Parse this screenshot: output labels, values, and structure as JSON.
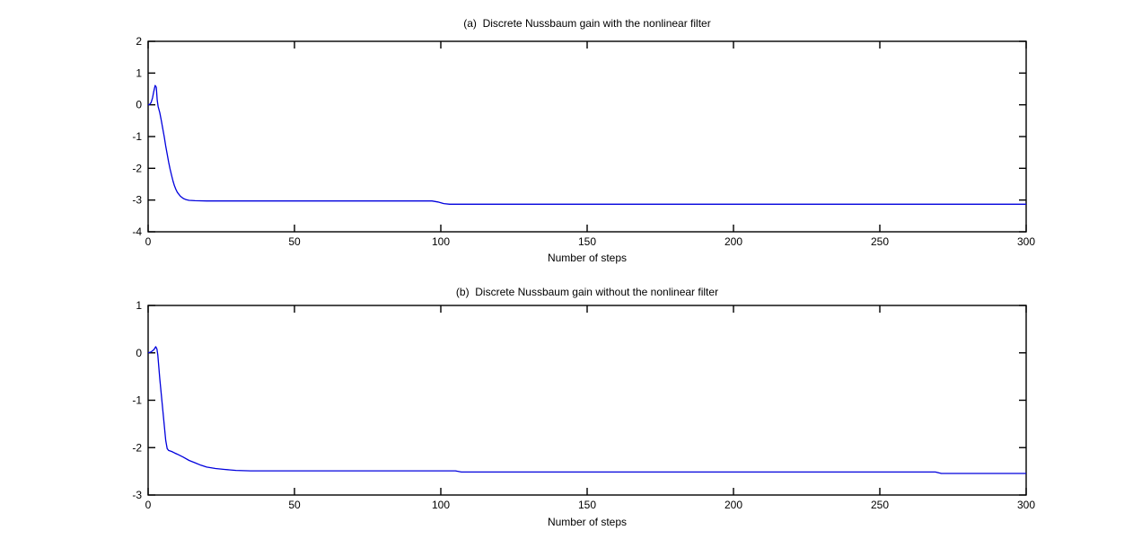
{
  "figure": {
    "background_color": "#ffffff",
    "axis_color": "#000000",
    "line_color": "#0000dd"
  },
  "chart_data": [
    {
      "type": "line",
      "title": "(a)  Discrete Nussbaum gain with the nonlinear filter",
      "xlabel": "Number of steps",
      "ylabel": "",
      "xlim": [
        0,
        300
      ],
      "ylim": [
        -4,
        2
      ],
      "xticks": [
        0,
        50,
        100,
        150,
        200,
        250,
        300
      ],
      "yticks": [
        2,
        1,
        0,
        -1,
        -2,
        -3,
        -4
      ],
      "grid": false,
      "legend": null,
      "description": "Gain starts at 0, spikes to about 0.6 near step 2-3, drops steeply to about -3.03 by step 14, stays flat, steps down slightly to about -3.13 near step 100, then remains constant to step 300",
      "series": [
        {
          "color": "#0000dd",
          "x": [
            0,
            0.5,
            1,
            1.5,
            2,
            2.4,
            2.8,
            3.1,
            3.4,
            4,
            4.5,
            5,
            5.5,
            6,
            6.5,
            7,
            7.5,
            8,
            8.5,
            9,
            9.5,
            10,
            11,
            12,
            13,
            14,
            16,
            20,
            50,
            97,
            99,
            101,
            103,
            150,
            200,
            250,
            300
          ],
          "y": [
            0,
            0.01,
            0.07,
            0.22,
            0.45,
            0.61,
            0.55,
            0.15,
            -0.05,
            -0.25,
            -0.5,
            -0.75,
            -1.0,
            -1.3,
            -1.55,
            -1.8,
            -2.02,
            -2.22,
            -2.4,
            -2.55,
            -2.67,
            -2.76,
            -2.88,
            -2.95,
            -2.99,
            -3.01,
            -3.02,
            -3.03,
            -3.03,
            -3.03,
            -3.06,
            -3.11,
            -3.13,
            -3.13,
            -3.13,
            -3.13,
            -3.13
          ]
        }
      ]
    },
    {
      "type": "line",
      "title": "(b)  Discrete Nussbaum gain without the nonlinear filter",
      "xlabel": "Number of steps",
      "ylabel": "",
      "xlim": [
        0,
        300
      ],
      "ylim": [
        -3,
        1
      ],
      "xticks": [
        0,
        50,
        100,
        150,
        200,
        250,
        300
      ],
      "yticks": [
        1,
        0,
        -1,
        -2,
        -3
      ],
      "grid": false,
      "legend": null,
      "description": "Gain starts at 0, small bump to about 0.13 near step 2-3, drops steeply to about -2.05 by step 7, decays gradually to about -2.49 by step 35, tiny step to -2.52 near step 106 and to -2.55 near step 270, then constant to step 300",
      "series": [
        {
          "color": "#0000dd",
          "x": [
            0,
            1,
            2,
            2.6,
            3,
            3.3,
            4,
            5,
            6,
            6.5,
            7,
            8,
            9,
            10,
            12,
            14,
            16,
            18,
            20,
            23,
            26,
            30,
            35,
            60,
            105,
            107,
            180,
            269,
            271,
            300
          ],
          "y": [
            0,
            0.02,
            0.07,
            0.13,
            0.08,
            -0.05,
            -0.55,
            -1.2,
            -1.85,
            -2.02,
            -2.06,
            -2.08,
            -2.11,
            -2.14,
            -2.2,
            -2.27,
            -2.32,
            -2.37,
            -2.41,
            -2.44,
            -2.46,
            -2.48,
            -2.49,
            -2.49,
            -2.49,
            -2.515,
            -2.515,
            -2.515,
            -2.545,
            -2.545
          ]
        }
      ]
    }
  ]
}
